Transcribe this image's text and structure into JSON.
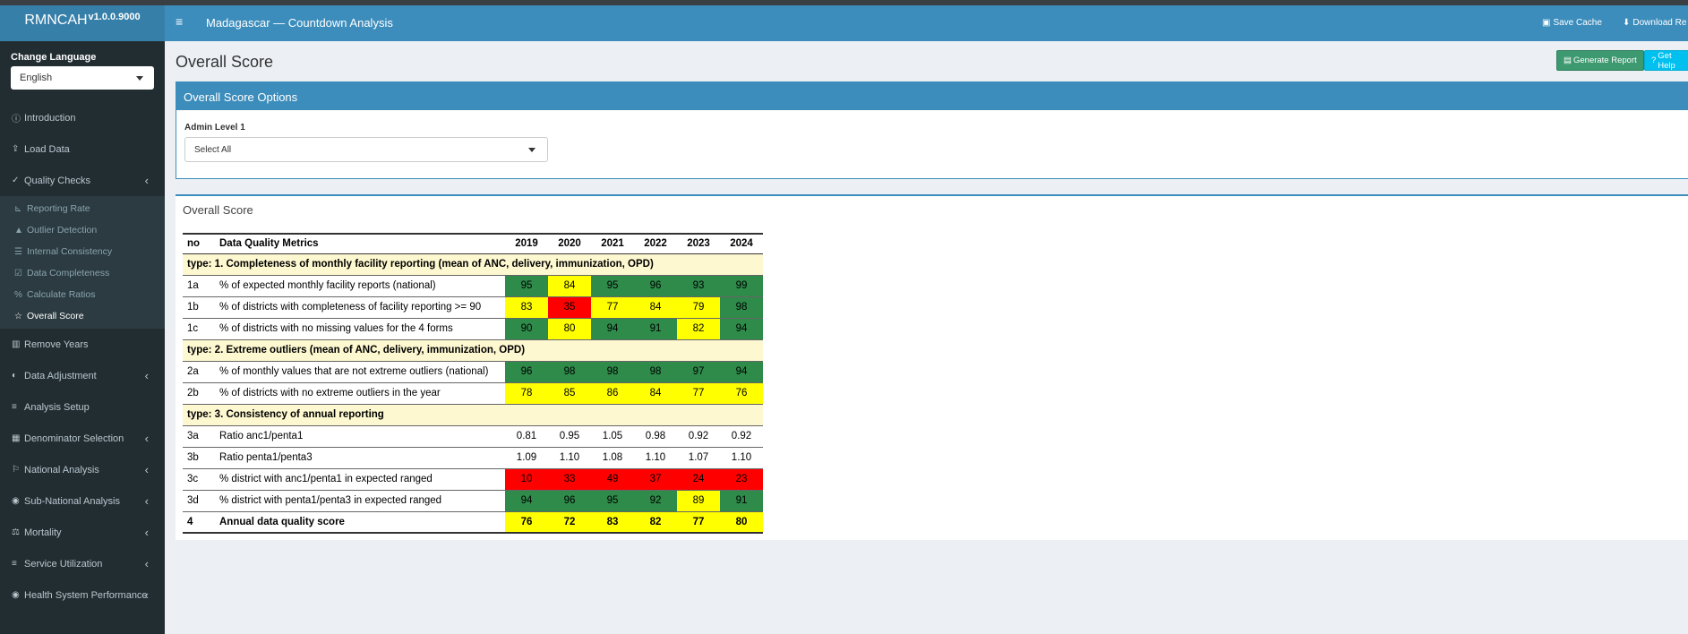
{
  "app": {
    "name": "RMNCAH",
    "version": "v1.0.0.9000",
    "title": "Madagascar — Countdown Analysis",
    "save_cache": "Save Cache",
    "download": "Download Re"
  },
  "sidebar": {
    "language_label": "Change Language",
    "language_value": "English",
    "items": [
      {
        "label": "Introduction",
        "icon": "info-circle-icon"
      },
      {
        "label": "Load Data",
        "icon": "upload-icon"
      },
      {
        "label": "Quality Checks",
        "icon": "check-circle-icon"
      },
      {
        "label": "Remove Years",
        "icon": "trash-icon"
      },
      {
        "label": "Data Adjustment",
        "icon": "adjust-icon"
      },
      {
        "label": "Analysis Setup",
        "icon": "sliders-icon"
      },
      {
        "label": "Denominator Selection",
        "icon": "calculator-icon"
      },
      {
        "label": "National Analysis",
        "icon": "flag-icon"
      },
      {
        "label": "Sub-National Analysis",
        "icon": "globe-icon"
      },
      {
        "label": "Mortality",
        "icon": "balance-icon"
      },
      {
        "label": "Service Utilization",
        "icon": "sliders-icon"
      },
      {
        "label": "Health System Performance",
        "icon": "globe-icon"
      }
    ],
    "sub_items": [
      {
        "label": "Reporting Rate",
        "icon": "chart-icon"
      },
      {
        "label": "Outlier Detection",
        "icon": "warning-icon"
      },
      {
        "label": "Internal Consistency",
        "icon": "list-icon"
      },
      {
        "label": "Data Completeness",
        "icon": "checkbox-icon"
      },
      {
        "label": "Calculate Ratios",
        "icon": "percent-icon"
      },
      {
        "label": "Overall Score",
        "icon": "star-icon"
      }
    ]
  },
  "page": {
    "title": "Overall Score",
    "generate_report": "Generate Report",
    "get_help": "Get Help"
  },
  "options": {
    "title": "Overall Score Options",
    "admin_label": "Admin Level 1",
    "admin_value": "Select All"
  },
  "score": {
    "title": "Overall Score",
    "headers": [
      "no",
      "Data Quality Metrics",
      "2019",
      "2020",
      "2021",
      "2022",
      "2023",
      "2024"
    ],
    "groups": [
      {
        "label": "type: 1. Completeness of monthly facility reporting (mean of ANC, delivery, immunization, OPD)",
        "rows": [
          {
            "no": "1a",
            "metric": "% of expected monthly facility reports (national)",
            "values": [
              "95",
              "84",
              "95",
              "96",
              "93",
              "99"
            ],
            "colors": [
              "green",
              "yellow",
              "green",
              "green",
              "green",
              "green"
            ]
          },
          {
            "no": "1b",
            "metric": "% of districts with completeness of facility reporting >= 90",
            "values": [
              "83",
              "35",
              "77",
              "84",
              "79",
              "98"
            ],
            "colors": [
              "yellow",
              "red",
              "yellow",
              "yellow",
              "yellow",
              "green"
            ]
          },
          {
            "no": "1c",
            "metric": "% of districts with no missing values for the 4 forms",
            "values": [
              "90",
              "80",
              "94",
              "91",
              "82",
              "94"
            ],
            "colors": [
              "green",
              "yellow",
              "green",
              "green",
              "yellow",
              "green"
            ]
          }
        ]
      },
      {
        "label": "type: 2. Extreme outliers (mean of ANC, delivery, immunization, OPD)",
        "rows": [
          {
            "no": "2a",
            "metric": "% of monthly values that are not extreme outliers (national)",
            "values": [
              "96",
              "98",
              "98",
              "98",
              "97",
              "94"
            ],
            "colors": [
              "green",
              "green",
              "green",
              "green",
              "green",
              "green"
            ]
          },
          {
            "no": "2b",
            "metric": "% of districts with no extreme outliers in the year",
            "values": [
              "78",
              "85",
              "86",
              "84",
              "77",
              "76"
            ],
            "colors": [
              "yellow",
              "yellow",
              "yellow",
              "yellow",
              "yellow",
              "yellow"
            ]
          }
        ]
      },
      {
        "label": "type: 3. Consistency of annual reporting",
        "rows": [
          {
            "no": "3a",
            "metric": "Ratio anc1/penta1",
            "values": [
              "0.81",
              "0.95",
              "1.05",
              "0.98",
              "0.92",
              "0.92"
            ],
            "colors": [
              "",
              "",
              "",
              "",
              "",
              ""
            ]
          },
          {
            "no": "3b",
            "metric": "Ratio penta1/penta3",
            "values": [
              "1.09",
              "1.10",
              "1.08",
              "1.10",
              "1.07",
              "1.10"
            ],
            "colors": [
              "",
              "",
              "",
              "",
              "",
              ""
            ]
          },
          {
            "no": "3c",
            "metric": "% district with anc1/penta1 in expected ranged",
            "values": [
              "10",
              "33",
              "49",
              "37",
              "24",
              "23"
            ],
            "colors": [
              "red",
              "red",
              "red",
              "red",
              "red",
              "red"
            ]
          },
          {
            "no": "3d",
            "metric": "% district with penta1/penta3 in expected ranged",
            "values": [
              "94",
              "96",
              "95",
              "92",
              "89",
              "91"
            ],
            "colors": [
              "green",
              "green",
              "green",
              "green",
              "yellow",
              "green"
            ]
          }
        ]
      }
    ],
    "total": {
      "no": "4",
      "metric": "Annual data quality score",
      "values": [
        "76",
        "72",
        "83",
        "82",
        "77",
        "80"
      ],
      "colors": [
        "yellow",
        "yellow",
        "yellow",
        "yellow",
        "yellow",
        "yellow"
      ]
    }
  }
}
